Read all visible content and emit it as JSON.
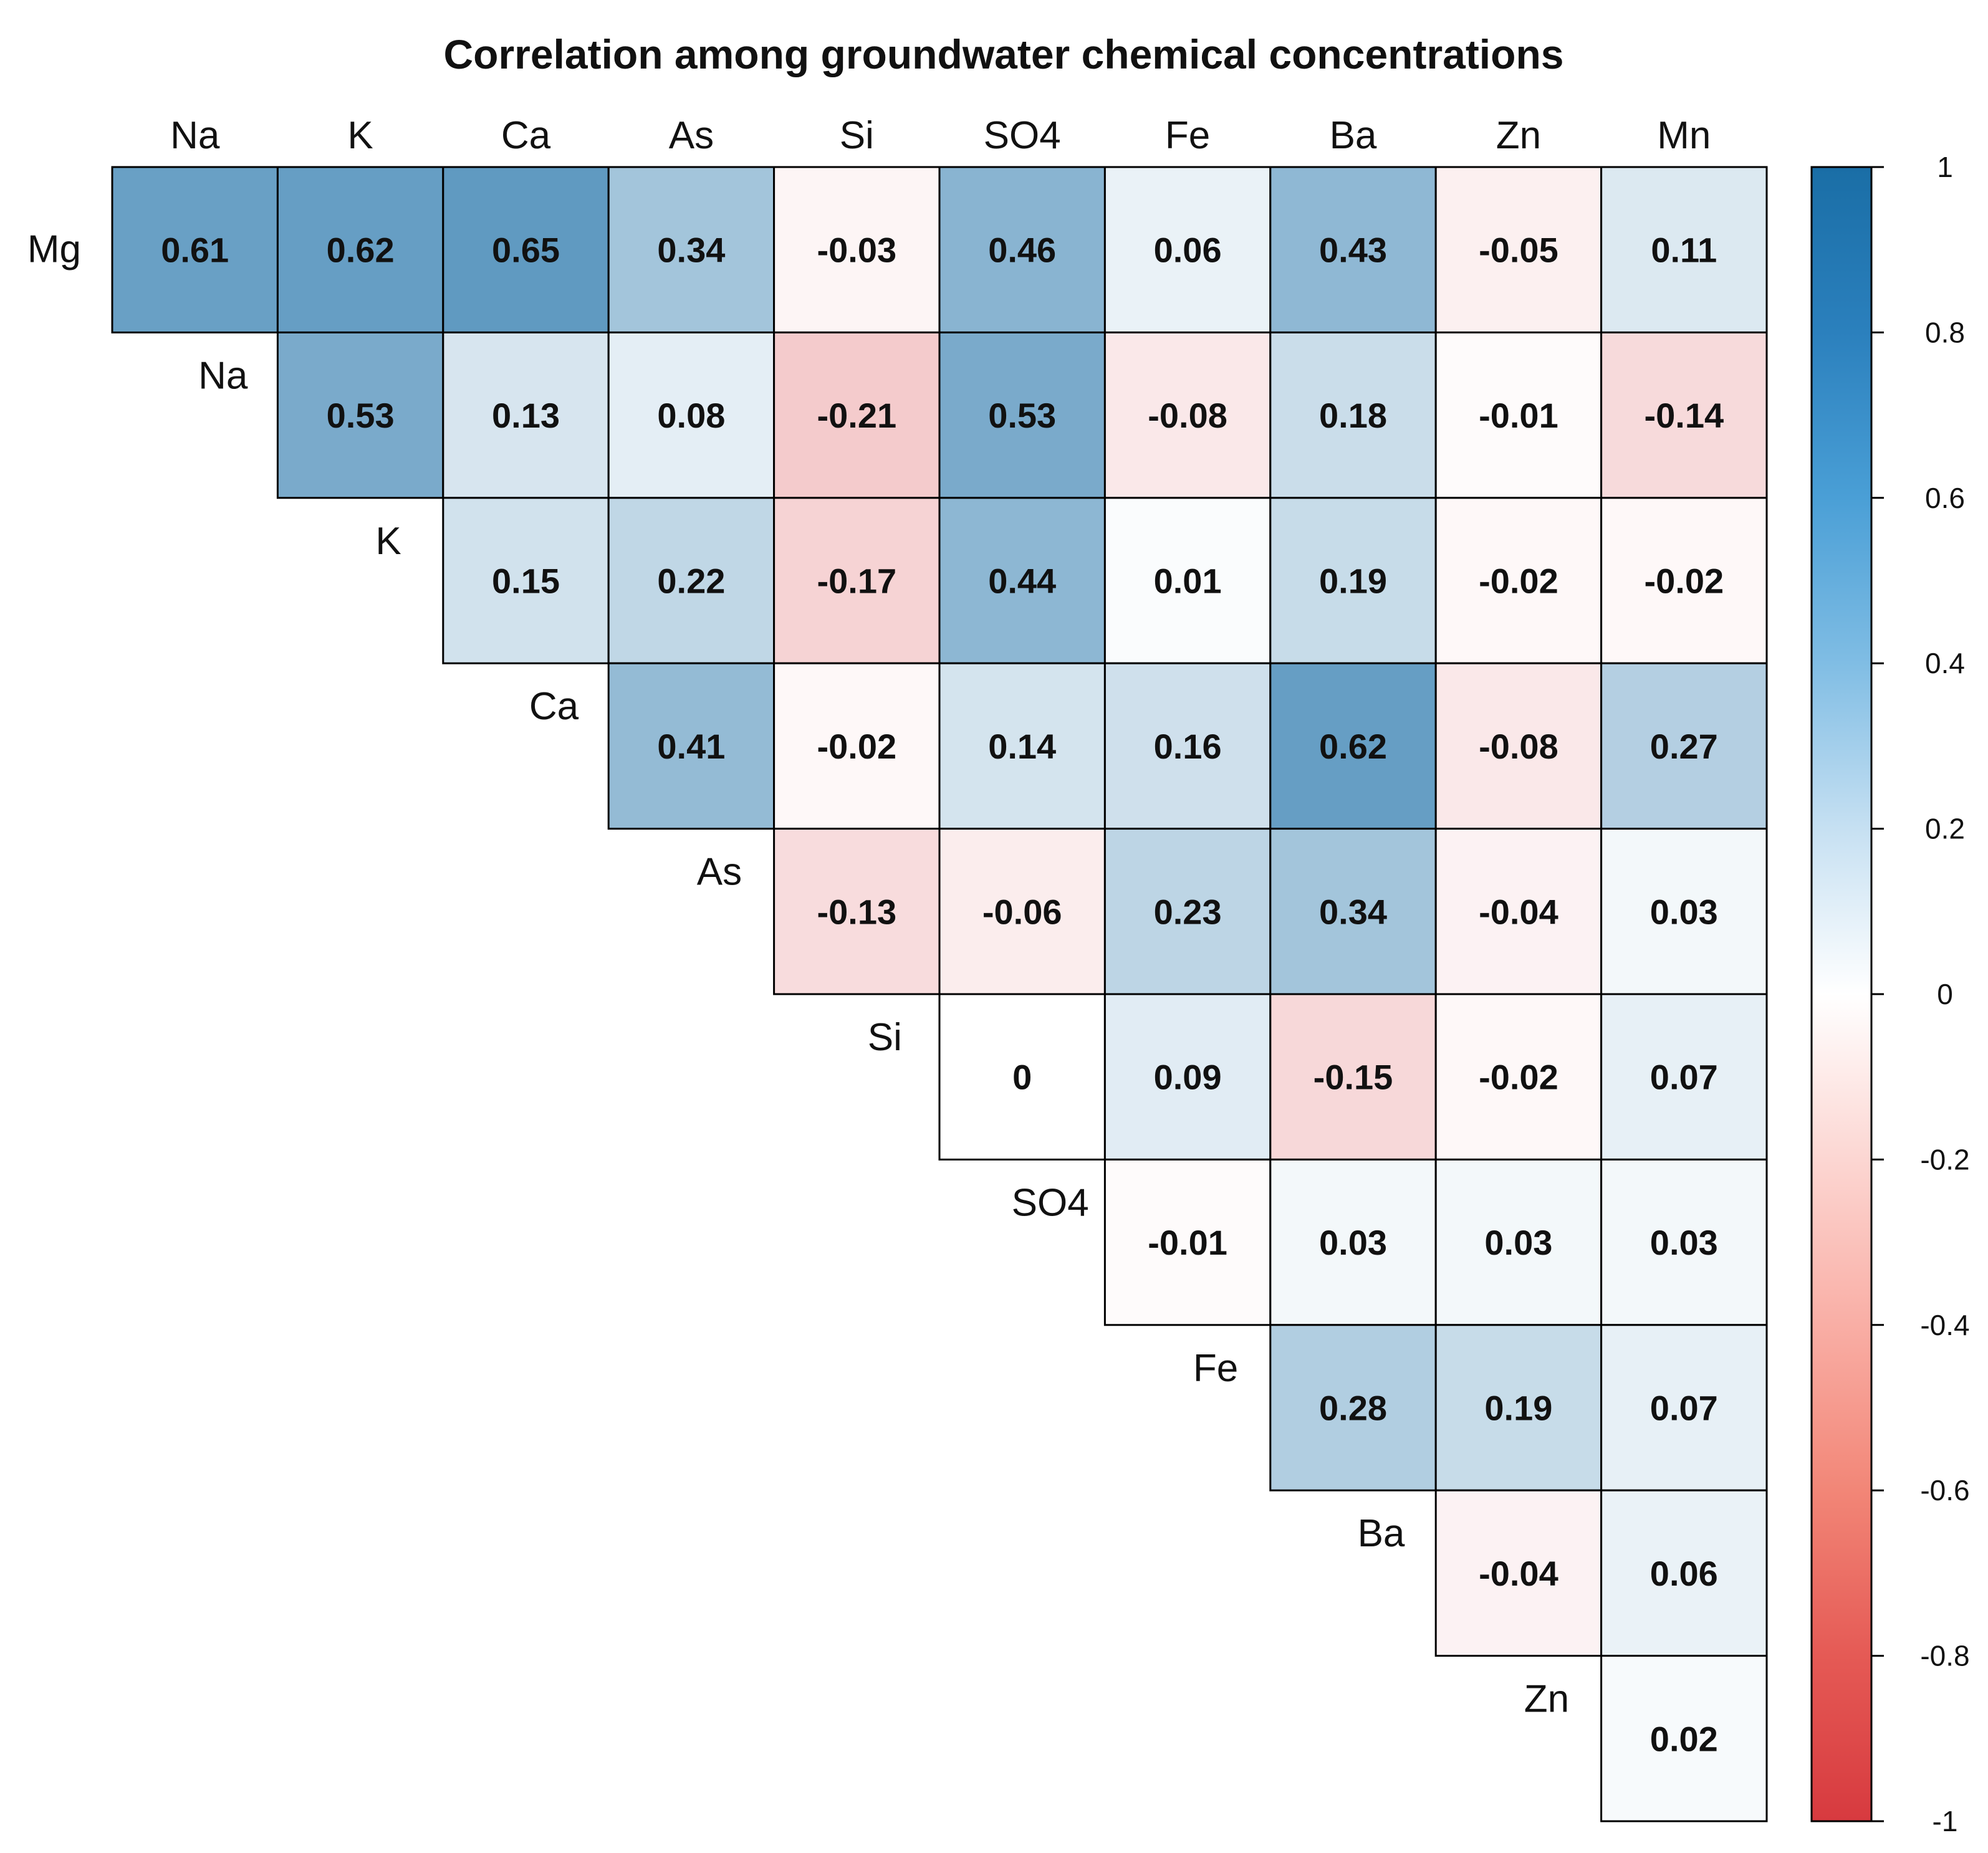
{
  "chart_data": {
    "type": "heatmap",
    "title": "Correlation among groundwater chemical concentrations",
    "row_variables": [
      "Mg",
      "Na",
      "K",
      "Ca",
      "As",
      "Si",
      "SO4",
      "Fe",
      "Ba",
      "Zn"
    ],
    "column_variables": [
      "Na",
      "K",
      "Ca",
      "As",
      "Si",
      "SO4",
      "Fe",
      "Ba",
      "Zn",
      "Mn"
    ],
    "upper_triangle": true,
    "value_labels": [
      [
        "0.61",
        "0.62",
        "0.65",
        "0.34",
        "-0.03",
        "0.46",
        "0.06",
        "0.43",
        "-0.05",
        "0.11"
      ],
      [
        "0.53",
        "0.13",
        "0.08",
        "-0.21",
        "0.53",
        "-0.08",
        "0.18",
        "-0.01",
        "-0.14"
      ],
      [
        "0.15",
        "0.22",
        "-0.17",
        "0.44",
        "0.01",
        "0.19",
        "-0.02",
        "-0.02"
      ],
      [
        "0.41",
        "-0.02",
        "0.14",
        "0.16",
        "0.62",
        "-0.08",
        "0.27"
      ],
      [
        "-0.13",
        "-0.06",
        "0.23",
        "0.34",
        "-0.04",
        "0.03"
      ],
      [
        "0",
        "0.09",
        "-0.15",
        "-0.02",
        "0.07"
      ],
      [
        "-0.01",
        "0.03",
        "0.03",
        "0.03"
      ],
      [
        "0.28",
        "0.19",
        "0.07"
      ],
      [
        "-0.04",
        "0.06"
      ],
      [
        "0.02"
      ]
    ],
    "color_scale": {
      "range": [
        -1,
        1
      ],
      "ticks": [
        "1",
        "0.8",
        "0.6",
        "0.4",
        "0.2",
        "0",
        "-0.2",
        "-0.4",
        "-0.6",
        "-0.8",
        "-1"
      ],
      "negative_color": "#d73a3f",
      "mid_color": "#ffffff",
      "positive_color": "#1a6ea6"
    }
  }
}
